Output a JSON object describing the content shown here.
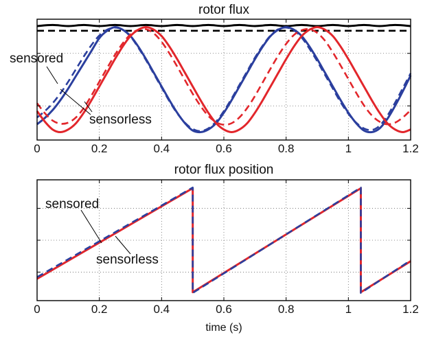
{
  "chart_data": [
    {
      "type": "line",
      "title": "rotor flux",
      "xlabel": "",
      "ylabel": "",
      "xlim": [
        0,
        1.2
      ],
      "ylim": [
        -1.15,
        1.15
      ],
      "xticks": [
        "0",
        "0.2",
        "0.4",
        "0.6",
        "0.8",
        "1",
        "1.2"
      ],
      "grid": true,
      "annotations": [
        "sensored",
        "sensorless"
      ],
      "series": [
        {
          "key": "magnitude_solid",
          "color": "#000000",
          "style": "solid",
          "x": [
            0,
            0.05,
            0.1,
            0.15,
            0.2,
            0.25,
            0.3,
            0.35,
            0.4,
            0.45,
            0.5,
            0.55,
            0.6,
            0.65,
            0.7,
            0.75,
            0.8,
            0.85,
            0.9,
            0.95,
            1.0,
            1.05,
            1.1,
            1.15,
            1.2
          ],
          "y": [
            1.02,
            1.04,
            1.02,
            1.04,
            1.02,
            1.04,
            1.02,
            1.04,
            1.02,
            1.04,
            1.02,
            1.04,
            1.02,
            1.04,
            1.02,
            1.04,
            1.02,
            1.04,
            1.02,
            1.04,
            1.02,
            1.04,
            1.02,
            1.04,
            1.02
          ]
        },
        {
          "key": "magnitude_dashed",
          "color": "#000000",
          "style": "dashed",
          "x": [
            0,
            1.2
          ],
          "y": [
            0.93,
            0.93
          ]
        },
        {
          "key": "blue_solid",
          "color": "#2b3f9e",
          "style": "solid",
          "x": [
            0,
            0.025,
            0.05,
            0.075,
            0.1,
            0.125,
            0.15,
            0.175,
            0.2,
            0.225,
            0.25,
            0.275,
            0.3,
            0.325,
            0.35,
            0.375,
            0.4,
            0.425,
            0.45,
            0.475,
            0.5,
            0.525,
            0.55,
            0.575,
            0.6,
            0.625,
            0.65,
            0.675,
            0.7,
            0.725,
            0.75,
            0.775,
            0.8,
            0.825,
            0.85,
            0.875,
            0.9,
            0.925,
            0.95,
            0.975,
            1.0,
            1.025,
            1.05,
            1.075,
            1.1,
            1.125,
            1.15,
            1.175,
            1.2
          ],
          "y": [
            -0.85,
            -0.73,
            -0.58,
            -0.39,
            -0.17,
            0.07,
            0.31,
            0.55,
            0.79,
            0.93,
            1.0,
            0.95,
            0.83,
            0.63,
            0.39,
            0.13,
            -0.13,
            -0.39,
            -0.63,
            -0.83,
            -0.97,
            -1.0,
            -0.95,
            -0.83,
            -0.63,
            -0.39,
            -0.13,
            0.13,
            0.39,
            0.63,
            0.83,
            0.95,
            1.0,
            0.95,
            0.83,
            0.63,
            0.39,
            0.13,
            -0.13,
            -0.39,
            -0.63,
            -0.83,
            -0.97,
            -1.0,
            -0.93,
            -0.75,
            -0.5,
            -0.22,
            0.08
          ]
        },
        {
          "key": "blue_dashed",
          "color": "#2b3f9e",
          "style": "dashed",
          "x": [
            0,
            0.025,
            0.05,
            0.075,
            0.1,
            0.125,
            0.15,
            0.175,
            0.2,
            0.225,
            0.25,
            0.275,
            0.3,
            0.325,
            0.35,
            0.375,
            0.4,
            0.425,
            0.45,
            0.475,
            0.5,
            0.525,
            0.55,
            0.575,
            0.6,
            0.625,
            0.65,
            0.675,
            0.7,
            0.725,
            0.75,
            0.775,
            0.8,
            0.825,
            0.85,
            0.875,
            0.9,
            0.925,
            0.95,
            0.975,
            1.0,
            1.025,
            1.05,
            1.075,
            1.1,
            1.125,
            1.15,
            1.175,
            1.2
          ],
          "y": [
            -0.72,
            -0.6,
            -0.45,
            -0.26,
            -0.04,
            0.2,
            0.44,
            0.66,
            0.84,
            0.95,
            0.99,
            0.95,
            0.82,
            0.61,
            0.37,
            0.11,
            -0.15,
            -0.41,
            -0.64,
            -0.82,
            -0.94,
            -0.98,
            -0.93,
            -0.8,
            -0.6,
            -0.36,
            -0.1,
            0.16,
            0.42,
            0.65,
            0.84,
            0.96,
            0.99,
            0.94,
            0.8,
            0.59,
            0.35,
            0.09,
            -0.17,
            -0.43,
            -0.65,
            -0.82,
            -0.93,
            -0.96,
            -0.88,
            -0.69,
            -0.44,
            -0.16,
            0.12
          ]
        },
        {
          "key": "red_solid",
          "color": "#e2262b",
          "style": "solid",
          "x": [
            0,
            0.025,
            0.05,
            0.075,
            0.1,
            0.125,
            0.15,
            0.175,
            0.2,
            0.225,
            0.25,
            0.275,
            0.3,
            0.325,
            0.35,
            0.375,
            0.4,
            0.425,
            0.45,
            0.475,
            0.5,
            0.525,
            0.55,
            0.575,
            0.6,
            0.625,
            0.65,
            0.675,
            0.7,
            0.725,
            0.75,
            0.775,
            0.8,
            0.825,
            0.85,
            0.875,
            0.9,
            0.925,
            0.95,
            0.975,
            1.0,
            1.025,
            1.05,
            1.075,
            1.1,
            1.125,
            1.15,
            1.175,
            1.2
          ],
          "y": [
            -0.6,
            -0.8,
            -0.95,
            -1.0,
            -0.95,
            -0.83,
            -0.63,
            -0.39,
            -0.13,
            0.13,
            0.39,
            0.63,
            0.83,
            0.95,
            1.0,
            0.95,
            0.83,
            0.63,
            0.39,
            0.13,
            -0.13,
            -0.39,
            -0.63,
            -0.83,
            -0.95,
            -1.0,
            -0.95,
            -0.83,
            -0.63,
            -0.39,
            -0.13,
            0.13,
            0.39,
            0.63,
            0.83,
            0.95,
            1.0,
            0.95,
            0.83,
            0.63,
            0.39,
            0.13,
            -0.13,
            -0.39,
            -0.63,
            -0.83,
            -0.95,
            -1.0,
            -0.95
          ]
        },
        {
          "key": "red_dashed",
          "color": "#e2262b",
          "style": "dashed",
          "x": [
            0,
            0.025,
            0.05,
            0.075,
            0.1,
            0.125,
            0.15,
            0.175,
            0.2,
            0.225,
            0.25,
            0.275,
            0.3,
            0.325,
            0.35,
            0.375,
            0.4,
            0.425,
            0.45,
            0.475,
            0.5,
            0.525,
            0.55,
            0.575,
            0.6,
            0.625,
            0.65,
            0.675,
            0.7,
            0.725,
            0.75,
            0.775,
            0.8,
            0.825,
            0.85,
            0.875,
            0.9,
            0.925,
            0.95,
            0.975,
            1.0,
            1.025,
            1.05,
            1.075,
            1.1,
            1.125,
            1.15,
            1.175,
            1.2
          ],
          "y": [
            -0.45,
            -0.64,
            -0.78,
            -0.84,
            -0.82,
            -0.72,
            -0.54,
            -0.3,
            -0.04,
            0.22,
            0.47,
            0.69,
            0.86,
            0.95,
            0.96,
            0.88,
            0.72,
            0.5,
            0.25,
            -0.01,
            -0.27,
            -0.5,
            -0.69,
            -0.81,
            -0.86,
            -0.83,
            -0.72,
            -0.54,
            -0.31,
            -0.05,
            0.21,
            0.46,
            0.68,
            0.85,
            0.94,
            0.96,
            0.89,
            0.74,
            0.52,
            0.27,
            0.01,
            -0.25,
            -0.49,
            -0.68,
            -0.8,
            -0.85,
            -0.82,
            -0.72,
            -0.58
          ]
        }
      ]
    },
    {
      "type": "line",
      "title": "rotor flux position",
      "xlabel": "time (s)",
      "ylabel": "",
      "xlim": [
        0,
        1.2
      ],
      "ylim": [
        -3.6,
        3.6
      ],
      "xticks": [
        "0",
        "0.2",
        "0.4",
        "0.6",
        "0.8",
        "1",
        "1.2"
      ],
      "grid": true,
      "annotations": [
        "sensored",
        "sensorless"
      ],
      "series": [
        {
          "key": "pos_red",
          "color": "#e2262b",
          "style": "solid",
          "x": [
            0,
            0.5,
            0.5,
            1.04,
            1.04,
            1.2
          ],
          "y": [
            -2.3,
            3.1,
            -3.1,
            3.1,
            -3.1,
            -1.25
          ]
        },
        {
          "key": "pos_blue",
          "color": "#2b3f9e",
          "style": "dashed",
          "x": [
            0,
            0.5,
            0.5,
            1.04,
            1.04,
            1.2
          ],
          "y": [
            -2.2,
            3.14,
            -3.14,
            3.14,
            -3.14,
            -1.2
          ]
        }
      ]
    }
  ]
}
